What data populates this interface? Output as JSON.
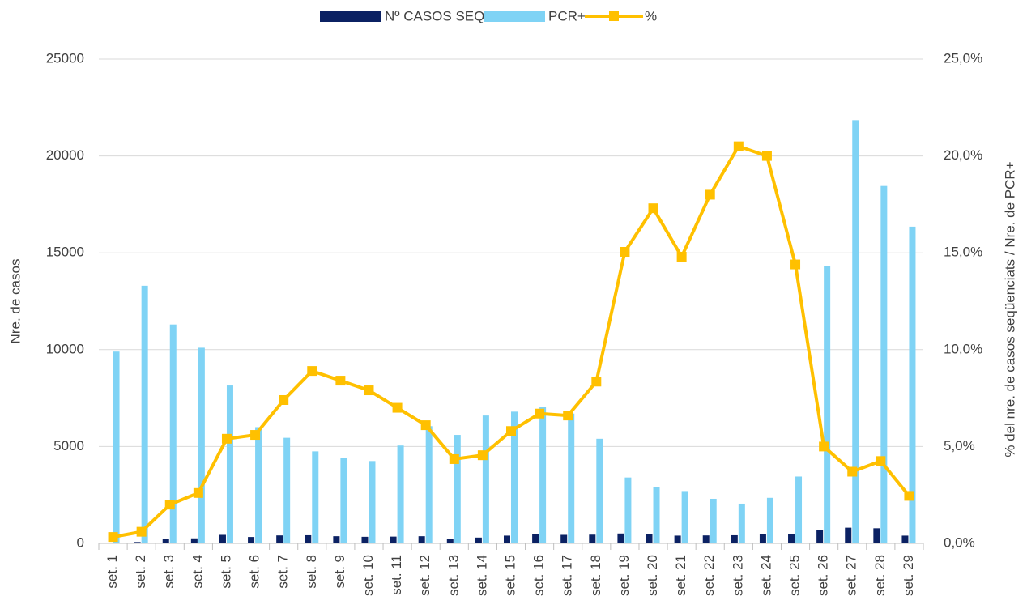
{
  "chart_data": {
    "type": "bar_line",
    "y_label": "Nre. de casos",
    "y2_label": "% del nre. de casos seqüenciats / Nre. de PCR+",
    "categories": [
      "set. 1",
      "set. 2",
      "set. 3",
      "set. 4",
      "set. 5",
      "set. 6",
      "set. 7",
      "set. 8",
      "set. 9",
      "set. 10",
      "set. 11",
      "set. 12",
      "set. 13",
      "set. 14",
      "set. 15",
      "set. 16",
      "set. 17",
      "set. 18",
      "set. 19",
      "set. 20",
      "set. 21",
      "set. 22",
      "set. 23",
      "set. 24",
      "set. 25",
      "set. 26",
      "set. 27",
      "set. 28",
      "set. 29"
    ],
    "series": [
      {
        "name": "Nº CASOS SEQ",
        "color": "#0b2163",
        "type": "bar",
        "values": [
          30,
          70,
          220,
          260,
          440,
          330,
          410,
          420,
          370,
          340,
          350,
          370,
          250,
          300,
          400,
          470,
          440,
          450,
          510,
          500,
          400,
          410,
          420,
          470,
          500,
          700,
          810,
          780,
          400
        ]
      },
      {
        "name": "PCR+",
        "color": "#7fd3f5",
        "type": "bar",
        "values": [
          9900,
          13300,
          11300,
          10100,
          8150,
          6000,
          5450,
          4750,
          4400,
          4250,
          5050,
          6050,
          5600,
          6600,
          6800,
          7050,
          6700,
          5400,
          3400,
          2900,
          2700,
          2300,
          2050,
          2350,
          3450,
          14300,
          21850,
          18450,
          16350
        ]
      },
      {
        "name": "%",
        "color": "#ffc000",
        "type": "line",
        "axis": "y2",
        "values": [
          0.33,
          0.6,
          2.0,
          2.6,
          5.4,
          5.6,
          7.4,
          8.9,
          8.4,
          7.9,
          7.0,
          6.1,
          4.35,
          4.55,
          5.8,
          6.7,
          6.6,
          8.35,
          15.05,
          17.3,
          14.8,
          18.0,
          20.5,
          20.0,
          14.4,
          5.0,
          3.7,
          4.25,
          2.45
        ]
      }
    ],
    "ylim": [
      0,
      25000
    ],
    "yticks": [
      0,
      5000,
      10000,
      15000,
      20000,
      25000
    ],
    "y2lim": [
      0,
      25
    ],
    "y2ticks": [
      {
        "value": 0,
        "label": "0,0%"
      },
      {
        "value": 5,
        "label": "5,0%"
      },
      {
        "value": 10,
        "label": "10,0%"
      },
      {
        "value": 15,
        "label": "15,0%"
      },
      {
        "value": 20,
        "label": "20,0%"
      },
      {
        "value": 25,
        "label": "25,0%"
      }
    ],
    "grid": true,
    "legend": "top"
  }
}
